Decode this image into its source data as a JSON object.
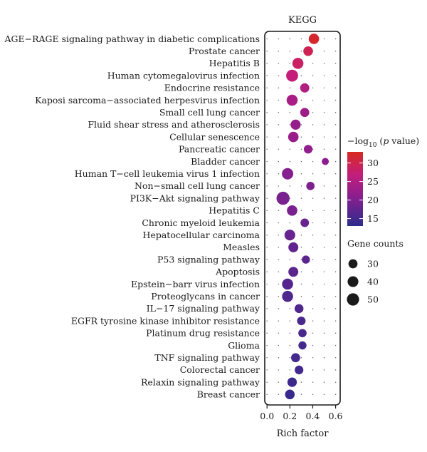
{
  "chart_data": {
    "type": "scatter",
    "title": "KEGG",
    "xlabel": "Rich factor",
    "xlim": [
      -0.02,
      0.64
    ],
    "xticks": [
      0.0,
      0.2,
      0.4,
      0.6
    ],
    "xtick_labels": [
      "0.0",
      "0.2",
      "0.4",
      "0.6"
    ],
    "grid": true,
    "color_legend": {
      "title_prefix": "−log",
      "title_sub": "10",
      "title_paren_open": " (",
      "title_italic": "p",
      "title_suffix": " value)",
      "ticks": [
        15,
        20,
        25,
        30
      ],
      "range": [
        13,
        33
      ],
      "colors": [
        "#2b2c8c",
        "#8b1e8f",
        "#c41e7a",
        "#d72a1f"
      ]
    },
    "size_legend": {
      "title": "Gene counts",
      "values": [
        30,
        40,
        50
      ]
    },
    "points": [
      {
        "term": "AGE−RAGE signaling pathway in diabetic complications",
        "x": 0.41,
        "count": 38,
        "neglog10p": 32.0
      },
      {
        "term": "Prostate cancer",
        "x": 0.36,
        "count": 33,
        "neglog10p": 29.5
      },
      {
        "term": "Hepatitis B",
        "x": 0.27,
        "count": 42,
        "neglog10p": 28.5
      },
      {
        "term": "Human cytomegalovirus infection",
        "x": 0.22,
        "count": 48,
        "neglog10p": 27.0
      },
      {
        "term": "Endocrine resistance",
        "x": 0.33,
        "count": 31,
        "neglog10p": 25.0
      },
      {
        "term": "Kaposi sarcoma−associated herpesvirus infection",
        "x": 0.22,
        "count": 42,
        "neglog10p": 24.0
      },
      {
        "term": "Small cell lung cancer",
        "x": 0.33,
        "count": 30,
        "neglog10p": 23.0
      },
      {
        "term": "Fluid shear stress and atherosclerosis",
        "x": 0.25,
        "count": 36,
        "neglog10p": 22.0
      },
      {
        "term": "Cellular senescence",
        "x": 0.23,
        "count": 38,
        "neglog10p": 22.5
      },
      {
        "term": "Pancreatic cancer",
        "x": 0.36,
        "count": 28,
        "neglog10p": 21.5
      },
      {
        "term": "Bladder cancer",
        "x": 0.51,
        "count": 20,
        "neglog10p": 21.0
      },
      {
        "term": "Human T−cell leukemia virus 1 infection",
        "x": 0.18,
        "count": 44,
        "neglog10p": 20.5
      },
      {
        "term": "Non−small cell lung cancer",
        "x": 0.38,
        "count": 26,
        "neglog10p": 20.0
      },
      {
        "term": "PI3K−Akt signaling pathway",
        "x": 0.14,
        "count": 56,
        "neglog10p": 19.5
      },
      {
        "term": "Hepatitis C",
        "x": 0.22,
        "count": 38,
        "neglog10p": 19.5
      },
      {
        "term": "Chronic myeloid leukemia",
        "x": 0.33,
        "count": 27,
        "neglog10p": 18.0
      },
      {
        "term": "Hepatocellular carcinoma",
        "x": 0.2,
        "count": 40,
        "neglog10p": 18.0
      },
      {
        "term": "Measles",
        "x": 0.23,
        "count": 35,
        "neglog10p": 17.5
      },
      {
        "term": "P53 signaling pathway",
        "x": 0.34,
        "count": 25,
        "neglog10p": 17.0
      },
      {
        "term": "Apoptosis",
        "x": 0.23,
        "count": 35,
        "neglog10p": 17.0
      },
      {
        "term": "Epstein−barr virus infection",
        "x": 0.18,
        "count": 42,
        "neglog10p": 16.5
      },
      {
        "term": "Proteoglycans in cancer",
        "x": 0.18,
        "count": 42,
        "neglog10p": 16.0
      },
      {
        "term": "IL−17 signaling pathway",
        "x": 0.28,
        "count": 29,
        "neglog10p": 16.0
      },
      {
        "term": "EGFR tyrosine kinase inhibitor resistance",
        "x": 0.3,
        "count": 27,
        "neglog10p": 15.5
      },
      {
        "term": "Platinum drug resistance",
        "x": 0.31,
        "count": 26,
        "neglog10p": 15.5
      },
      {
        "term": "Glioma",
        "x": 0.31,
        "count": 25,
        "neglog10p": 15.0
      },
      {
        "term": "TNF signaling pathway",
        "x": 0.25,
        "count": 30,
        "neglog10p": 15.0
      },
      {
        "term": "Colorectal cancer",
        "x": 0.28,
        "count": 28,
        "neglog10p": 15.0
      },
      {
        "term": "Relaxin signaling pathway",
        "x": 0.22,
        "count": 32,
        "neglog10p": 14.5
      },
      {
        "term": "Breast cancer",
        "x": 0.2,
        "count": 33,
        "neglog10p": 14.0
      }
    ]
  }
}
